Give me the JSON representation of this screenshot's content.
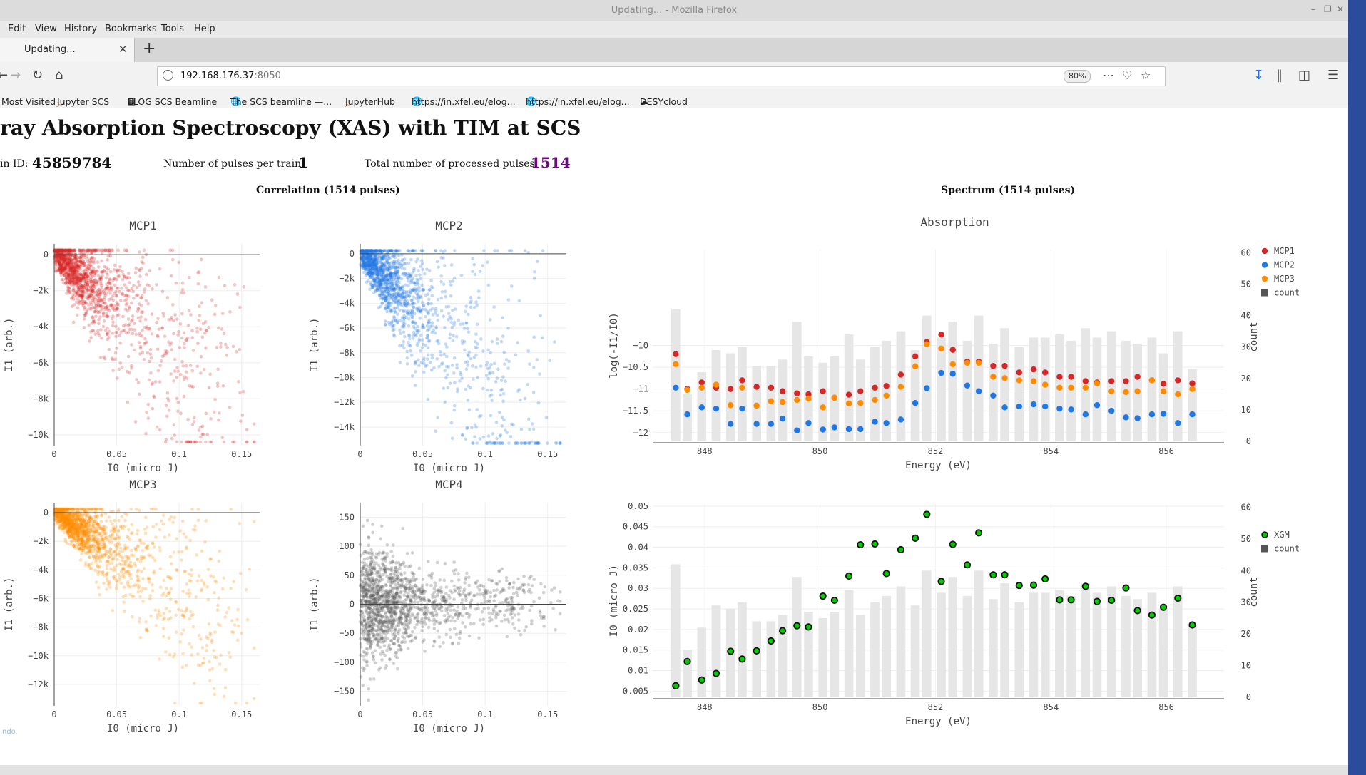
{
  "browser": {
    "window_title": "Updating... - Mozilla Firefox",
    "menu": [
      "Edit",
      "View",
      "History",
      "Bookmarks",
      "Tools",
      "Help"
    ],
    "tab_label": "Updating...",
    "url_host": "192.168.176.37",
    "url_port": ":8050",
    "zoom": "80%",
    "bookmarks": [
      "Most Visited",
      "Jupyter SCS",
      "ELOG SCS Beamline",
      "The SCS beamline —...",
      "JupyterHub",
      "https://in.xfel.eu/elog...",
      "https://in.xfel.eu/elog...",
      "DESYcloud"
    ]
  },
  "page": {
    "title": "ray Absorption Spectroscopy (XAS) with TIM at SCS",
    "train_label": "in ID:",
    "train_id": "45859784",
    "pulses_label": "Number of pulses per train:",
    "pulses_value": "1",
    "total_label": "Total number of processed pulses:",
    "total_value": "1514",
    "correlation_title": "Correlation (1514 pulses)",
    "spectrum_title": "Spectrum (1514 pulses)",
    "footer_mark": "ndo"
  },
  "colors": {
    "mcp1": "#d62728",
    "mcp2": "#1f77e4",
    "mcp3": "#ff8c00",
    "mcp4": "#555555",
    "count": "#e6e6e6",
    "xgm": "#00aa00",
    "total": "#6a0a7a"
  },
  "chart_data": [
    {
      "type": "scatter",
      "title": "MCP1",
      "xlabel": "I0 (micro J)",
      "ylabel": "I1 (arb.)",
      "xlim": [
        0,
        0.165
      ],
      "ylim": [
        -10600,
        600
      ],
      "xticks": [
        0,
        0.05,
        0.1,
        0.15
      ],
      "xtick_labels": [
        "0",
        "0.05",
        "0.1",
        "0.15"
      ],
      "yticks": [
        0,
        -2000,
        -4000,
        -6000,
        -8000,
        -10000
      ],
      "ytick_labels": [
        "0",
        "−2k",
        "−4k",
        "−6k",
        "−8k",
        "−10k"
      ],
      "point_count": 1514,
      "slope": -55000,
      "noise_y": 1300,
      "noise_x": 0.012
    },
    {
      "type": "scatter",
      "title": "MCP2",
      "xlabel": "I0 (micro J)",
      "ylabel": "I1 (arb.)",
      "xlim": [
        0,
        0.165
      ],
      "ylim": [
        -15500,
        800
      ],
      "xticks": [
        0,
        0.05,
        0.1,
        0.15
      ],
      "xtick_labels": [
        "0",
        "0.05",
        "0.1",
        "0.15"
      ],
      "yticks": [
        0,
        -2000,
        -4000,
        -6000,
        -8000,
        -10000,
        -12000,
        -14000
      ],
      "ytick_labels": [
        "0",
        "−2k",
        "−4k",
        "−6k",
        "−8k",
        "−10k",
        "−12k",
        "−14k"
      ],
      "point_count": 1514,
      "slope": -95000,
      "noise_y": 2000,
      "noise_x": 0.012
    },
    {
      "type": "scatter",
      "title": "MCP3",
      "xlabel": "I0 (micro J)",
      "ylabel": "I1 (arb.)",
      "xlim": [
        0,
        0.165
      ],
      "ylim": [
        -13500,
        700
      ],
      "xticks": [
        0,
        0.05,
        0.1,
        0.15
      ],
      "xtick_labels": [
        "0",
        "0.05",
        "0.1",
        "0.15"
      ],
      "yticks": [
        0,
        -2000,
        -4000,
        -6000,
        -8000,
        -10000,
        -12000
      ],
      "ytick_labels": [
        "0",
        "−2k",
        "−4k",
        "−6k",
        "−8k",
        "−10k",
        "−12k"
      ],
      "point_count": 1514,
      "slope": -55000,
      "noise_y": 1200,
      "noise_x": 0.012
    },
    {
      "type": "scatter",
      "title": "MCP4",
      "xlabel": "I0 (micro J)",
      "ylabel": "I1 (arb.)",
      "xlim": [
        0,
        0.165
      ],
      "ylim": [
        -175,
        175
      ],
      "xticks": [
        0,
        0.05,
        0.1,
        0.15
      ],
      "xtick_labels": [
        "0",
        "0.05",
        "0.1",
        "0.15"
      ],
      "yticks": [
        150,
        100,
        50,
        0,
        -50,
        -100,
        -150
      ],
      "ytick_labels": [
        "150",
        "100",
        "50",
        "0",
        "−50",
        "−100",
        "−150"
      ],
      "point_count": 1514,
      "slope": 0,
      "noise_y": 55,
      "noise_x": 0.012
    },
    {
      "type": "scatter+bar",
      "title": "Absorption",
      "xlabel": "Energy (eV)",
      "ylabel": "log(-I1/I0)",
      "y2label": "count",
      "xlim": [
        847.1,
        857.0
      ],
      "ylim": [
        -12.2,
        -7.8
      ],
      "y2lim": [
        0,
        61
      ],
      "xticks": [
        848,
        850,
        852,
        854,
        856
      ],
      "xtick_labels": [
        "848",
        "850",
        "852",
        "854",
        "856"
      ],
      "yticks": [
        -10,
        -10.5,
        -11,
        -11.5,
        -12
      ],
      "ytick_labels": [
        "−10",
        "−10.5",
        "−11",
        "−11.5",
        "−12"
      ],
      "y2ticks": [
        0,
        10,
        20,
        30,
        40,
        50,
        60
      ],
      "y2tick_labels": [
        "0",
        "10",
        "20",
        "30",
        "40",
        "50",
        "60"
      ],
      "legend": [
        "MCP1",
        "MCP2",
        "MCP3",
        "count"
      ],
      "energy": [
        847.5,
        847.7,
        847.95,
        848.2,
        848.45,
        848.65,
        848.9,
        849.15,
        849.35,
        849.6,
        849.8,
        850.05,
        850.25,
        850.5,
        850.7,
        850.95,
        851.15,
        851.4,
        851.65,
        851.85,
        852.1,
        852.3,
        852.55,
        852.75,
        853.0,
        853.2,
        853.45,
        853.7,
        853.9,
        854.15,
        854.35,
        854.6,
        854.8,
        855.05,
        855.3,
        855.5,
        855.75,
        855.95,
        856.2,
        856.45
      ],
      "count": [
        42,
        15,
        22,
        29,
        28,
        30,
        24,
        24,
        26,
        38,
        27,
        25,
        27,
        34,
        26,
        30,
        32,
        35,
        29,
        40,
        33,
        38,
        32,
        40,
        31,
        36,
        30,
        33,
        33,
        34,
        32,
        36,
        33,
        35,
        32,
        31,
        33,
        28,
        35,
        23
      ],
      "series": [
        {
          "name": "MCP1",
          "values": [
            -10.2,
            -11.0,
            -10.85,
            -10.97,
            -11.0,
            -10.8,
            -10.95,
            -10.97,
            -11.05,
            -11.1,
            -11.12,
            -11.05,
            -11.2,
            -11.13,
            -11.05,
            -10.97,
            -10.93,
            -10.67,
            -10.25,
            -9.92,
            -9.75,
            -10.1,
            -10.37,
            -10.37,
            -10.47,
            -10.47,
            -10.62,
            -10.55,
            -10.62,
            -10.72,
            -10.72,
            -10.82,
            -10.85,
            -10.82,
            -10.82,
            -10.72,
            -10.8,
            -10.88,
            -10.8,
            -10.87
          ]
        },
        {
          "name": "MCP2",
          "values": [
            -10.97,
            -11.58,
            -11.42,
            -11.45,
            -11.8,
            -11.45,
            -11.8,
            -11.8,
            -11.68,
            -11.95,
            -11.78,
            -11.93,
            -11.88,
            -11.92,
            -11.92,
            -11.75,
            -11.78,
            -11.7,
            -11.32,
            -10.98,
            -10.63,
            -10.65,
            -10.92,
            -11.05,
            -11.15,
            -11.42,
            -11.4,
            -11.35,
            -11.4,
            -11.45,
            -11.47,
            -11.58,
            -11.37,
            -11.5,
            -11.65,
            -11.67,
            -11.58,
            -11.57,
            -11.78,
            -11.58
          ]
        },
        {
          "name": "MCP3",
          "values": [
            -10.43,
            -11.02,
            -10.97,
            -10.9,
            -11.37,
            -10.97,
            -11.38,
            -11.28,
            -11.3,
            -11.25,
            -11.22,
            -11.42,
            -11.2,
            -11.33,
            -11.32,
            -11.25,
            -11.15,
            -10.95,
            -10.48,
            -9.97,
            -10.07,
            -10.43,
            -10.4,
            -10.4,
            -10.72,
            -10.75,
            -10.8,
            -10.82,
            -10.9,
            -10.97,
            -10.97,
            -10.97,
            -10.87,
            -11.05,
            -11.07,
            -11.05,
            -10.8,
            -11.05,
            -11.12,
            -11.0
          ]
        }
      ]
    },
    {
      "type": "scatter+bar",
      "title": "",
      "xlabel": "Energy (eV)",
      "ylabel": "I0 (micro J)",
      "y2label": "count",
      "xlim": [
        847.1,
        857.0
      ],
      "ylim": [
        0.0035,
        0.0505
      ],
      "y2lim": [
        0,
        61
      ],
      "xticks": [
        848,
        850,
        852,
        854,
        856
      ],
      "xtick_labels": [
        "848",
        "850",
        "852",
        "854",
        "856"
      ],
      "yticks": [
        0.05,
        0.045,
        0.04,
        0.035,
        0.03,
        0.025,
        0.02,
        0.015,
        0.01,
        0.005
      ],
      "ytick_labels": [
        "0.05",
        "0.045",
        "0.04",
        "0.035",
        "0.03",
        "0.025",
        "0.02",
        "0.015",
        "0.01",
        "0.005"
      ],
      "y2ticks": [
        0,
        10,
        20,
        30,
        40,
        50,
        60
      ],
      "y2tick_labels": [
        "0",
        "10",
        "20",
        "30",
        "40",
        "50",
        "60"
      ],
      "legend": [
        "XGM",
        "count"
      ],
      "energy": [
        847.5,
        847.7,
        847.95,
        848.2,
        848.45,
        848.65,
        848.9,
        849.15,
        849.35,
        849.6,
        849.8,
        850.05,
        850.25,
        850.5,
        850.7,
        850.95,
        851.15,
        851.4,
        851.65,
        851.85,
        852.1,
        852.3,
        852.55,
        852.75,
        853.0,
        853.2,
        853.45,
        853.7,
        853.9,
        854.15,
        854.35,
        854.6,
        854.8,
        855.05,
        855.3,
        855.5,
        855.75,
        855.95,
        856.2,
        856.45
      ],
      "count": [
        42,
        15,
        22,
        29,
        28,
        30,
        24,
        24,
        26,
        38,
        27,
        25,
        27,
        34,
        26,
        30,
        32,
        35,
        29,
        40,
        33,
        38,
        32,
        40,
        31,
        36,
        30,
        33,
        33,
        34,
        32,
        36,
        33,
        35,
        32,
        31,
        33,
        28,
        35,
        23
      ],
      "series": [
        {
          "name": "XGM",
          "values": [
            0.0063,
            0.0122,
            0.0077,
            0.0093,
            0.0147,
            0.0128,
            0.0148,
            0.0172,
            0.0197,
            0.0209,
            0.0206,
            0.0281,
            0.0271,
            0.033,
            0.0406,
            0.0408,
            0.0336,
            0.0394,
            0.0422,
            0.048,
            0.0317,
            0.0407,
            0.0357,
            0.0435,
            0.0333,
            0.0333,
            0.0307,
            0.0308,
            0.0323,
            0.0272,
            0.0272,
            0.0305,
            0.0268,
            0.0271,
            0.0301,
            0.0246,
            0.0235,
            0.0254,
            0.0276,
            0.0211
          ]
        }
      ]
    }
  ]
}
